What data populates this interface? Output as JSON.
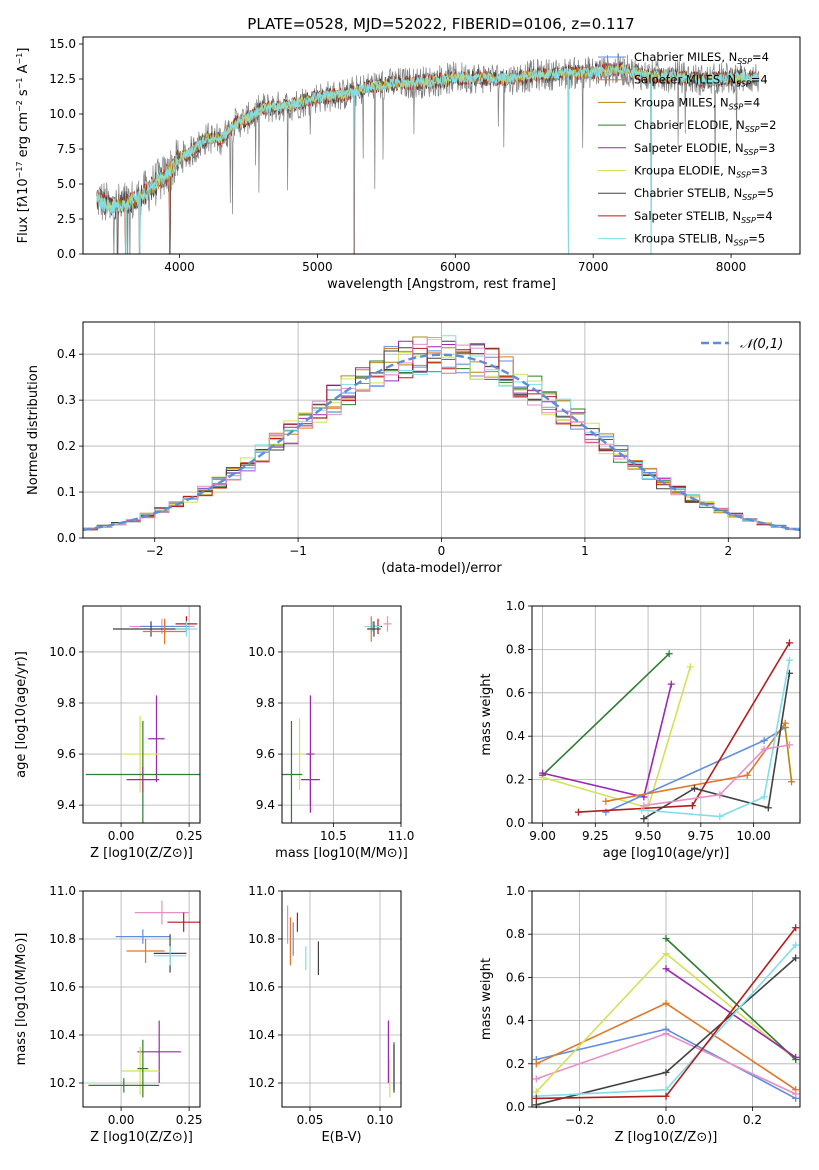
{
  "figure": {
    "title": "PLATE=0528, MJD=52022, FIBERID=0106, z=0.117"
  },
  "colors": {
    "chabrier_miles": "#5f8ee0",
    "salpeter_miles": "#e0772a",
    "kroupa_miles": "#b8860b",
    "chabrier_elodie": "#2e7d32",
    "salpeter_elodie": "#9c27b0",
    "kroupa_elodie": "#d4e157",
    "chabrier_stelib": "#424242",
    "salpeter_stelib": "#b71c1c",
    "kroupa_stelib": "#80deea",
    "pink": "#e88fc7",
    "gaussian": "#5b8ed6",
    "data_spectrum": "#808080"
  },
  "chart_data": [
    {
      "id": "spectrum",
      "type": "line",
      "xlabel": "wavelength [Angstrom, rest frame]",
      "ylabel_html": "Flux [f<tspan font-style='italic'>λ</tspan>10<tspan dy='-5' font-size='8'>−17</tspan><tspan dy='5'> erg cm</tspan><tspan dy='-5' font-size='8'>−2</tspan><tspan dy='5'> s</tspan><tspan dy='-5' font-size='8'>−1</tspan><tspan dy='5'> A</tspan><tspan dy='-5' font-size='8'>−1</tspan><tspan dy='5'>]</tspan>",
      "xlim": [
        3300,
        8500
      ],
      "ylim": [
        0,
        15.5
      ],
      "xticks": [
        4000,
        5000,
        6000,
        7000,
        8000
      ],
      "yticks": [
        "0.0",
        "2.5",
        "5.0",
        "7.5",
        "10.0",
        "12.5",
        "15.0"
      ],
      "ytick_values": [
        0,
        2.5,
        5,
        7.5,
        10,
        12.5,
        15
      ],
      "continuum": {
        "x": [
          3400,
          3500,
          3600,
          3700,
          3800,
          3900,
          4000,
          4100,
          4200,
          4300,
          4400,
          4500,
          4600,
          4800,
          5000,
          5200,
          5400,
          5600,
          5800,
          6000,
          6200,
          6400,
          6600,
          6800,
          7000,
          7200,
          7400,
          7600,
          7800,
          8000,
          8200
        ],
        "y": [
          4.0,
          3.3,
          3.6,
          3.9,
          4.8,
          5.6,
          6.8,
          7.4,
          8.3,
          8.2,
          9.3,
          9.7,
          10.4,
          10.6,
          11.2,
          11.4,
          12.0,
          12.2,
          12.3,
          12.6,
          12.6,
          12.5,
          12.8,
          12.9,
          13.0,
          13.2,
          12.7,
          12.7,
          12.4,
          12.6,
          12.6
        ]
      },
      "deep_features_x": [
        3550,
        3610,
        3710,
        3930,
        5265,
        6820,
        7420
      ],
      "legend": [
        {
          "label": "Chabrier MILES, N",
          "sub": "SSP",
          "tail": "=4",
          "color": "chabrier_miles"
        },
        {
          "label": "Salpeter MILES, N",
          "sub": "SSP",
          "tail": "=4",
          "color": "salpeter_miles"
        },
        {
          "label": "Kroupa MILES, N",
          "sub": "SSP",
          "tail": "=4",
          "color": "kroupa_miles"
        },
        {
          "label": "Chabrier ELODIE, N",
          "sub": "SSP",
          "tail": "=2",
          "color": "chabrier_elodie"
        },
        {
          "label": "Salpeter ELODIE, N",
          "sub": "SSP",
          "tail": "=3",
          "color": "salpeter_elodie"
        },
        {
          "label": "Kroupa ELODIE, N",
          "sub": "SSP",
          "tail": "=3",
          "color": "kroupa_elodie"
        },
        {
          "label": "Chabrier STELIB, N",
          "sub": "SSP",
          "tail": "=5",
          "color": "chabrier_stelib"
        },
        {
          "label": "Salpeter STELIB, N",
          "sub": "SSP",
          "tail": "=4",
          "color": "salpeter_stelib"
        },
        {
          "label": "Kroupa STELIB, N",
          "sub": "SSP",
          "tail": "=5",
          "color": "kroupa_stelib"
        }
      ]
    },
    {
      "id": "residuals",
      "type": "histogram",
      "xlabel": "(data-model)/error",
      "ylabel": "Normed distribution",
      "xlim": [
        -2.5,
        2.5
      ],
      "ylim": [
        0,
        0.47
      ],
      "xticks": [
        -2,
        -1,
        0,
        1,
        2
      ],
      "xtick_labels": [
        "−2",
        "−1",
        "0",
        "1",
        "2"
      ],
      "yticks": [
        0.0,
        0.1,
        0.2,
        0.3,
        0.4
      ],
      "ytick_labels": [
        "0.0",
        "0.1",
        "0.2",
        "0.3",
        "0.4"
      ],
      "bin_width": 0.1,
      "legend": "𝒩(0,1)",
      "gaussian": {
        "mu": 0,
        "sigma": 1
      }
    },
    {
      "id": "age_vs_Z",
      "type": "errorbar",
      "xlabel": "Z [log10(Z/Z⊙)]",
      "ylabel": "age  [log10(age/yr)]",
      "xlim": [
        -0.14,
        0.29
      ],
      "ylim": [
        9.33,
        10.18
      ],
      "xticks": [
        0.0,
        0.25
      ],
      "xtick_labels": [
        "0.00",
        "0.25"
      ],
      "yticks": [
        9.4,
        9.6,
        9.8,
        10.0
      ],
      "ytick_labels": [
        "9.4",
        "9.6",
        "9.8",
        "10.0"
      ],
      "points": [
        {
          "x": 0.15,
          "y": 10.1,
          "xerr": 0.12,
          "yerr": 0.03,
          "color": "pink"
        },
        {
          "x": 0.16,
          "y": 10.1,
          "xerr": 0.09,
          "yerr": 0.03,
          "color": "chabrier_miles"
        },
        {
          "x": 0.24,
          "y": 10.11,
          "xerr": 0.04,
          "yerr": 0.03,
          "color": "salpeter_stelib"
        },
        {
          "x": 0.11,
          "y": 10.09,
          "xerr": 0.14,
          "yerr": 0.03,
          "color": "chabrier_stelib"
        },
        {
          "x": 0.16,
          "y": 10.08,
          "xerr": 0.08,
          "yerr": 0.05,
          "color": "salpeter_miles"
        },
        {
          "x": 0.24,
          "y": 10.09,
          "xerr": 0.04,
          "yerr": 0.03,
          "color": "kroupa_stelib"
        },
        {
          "x": 0.13,
          "y": 9.66,
          "xerr": 0.03,
          "yerr": 0.17,
          "color": "salpeter_elodie"
        },
        {
          "x": 0.07,
          "y": 9.6,
          "xerr": 0.07,
          "yerr": 0.15,
          "color": "kroupa_elodie"
        },
        {
          "x": 0.08,
          "y": 9.52,
          "xerr": 0.21,
          "yerr": 0.21,
          "color": "chabrier_elodie"
        },
        {
          "x": 0.08,
          "y": 9.5,
          "xerr": 0.06,
          "yerr": 0.05,
          "color": "salpeter_elodie"
        }
      ]
    },
    {
      "id": "age_vs_mass",
      "type": "errorbar",
      "xlabel": "mass [log10(M/M⊙)]",
      "ylabel": "",
      "xlim": [
        10.12,
        11.0
      ],
      "ylim": [
        9.33,
        10.18
      ],
      "xticks": [
        10.5,
        11.0
      ],
      "xtick_labels": [
        "10.5",
        "11.0"
      ],
      "yticks": [
        9.4,
        9.6,
        9.8,
        10.0
      ],
      "ytick_labels": [
        "9.4",
        "9.6",
        "9.8",
        "10.0"
      ],
      "points": [
        {
          "x": 10.9,
          "y": 10.11,
          "xerr": 0.03,
          "yerr": 0.03,
          "color": "pink"
        },
        {
          "x": 10.83,
          "y": 10.1,
          "xerr": 0.03,
          "yerr": 0.03,
          "color": "salpeter_stelib"
        },
        {
          "x": 10.79,
          "y": 10.1,
          "xerr": 0.06,
          "yerr": 0.02,
          "color": "kroupa_stelib"
        },
        {
          "x": 10.78,
          "y": 10.09,
          "xerr": 0.03,
          "yerr": 0.05,
          "color": "salpeter_miles"
        },
        {
          "x": 10.8,
          "y": 10.09,
          "xerr": 0.05,
          "yerr": 0.03,
          "color": "chabrier_stelib"
        },
        {
          "x": 10.33,
          "y": 9.6,
          "xerr": 0.03,
          "yerr": 0.23,
          "color": "salpeter_elodie"
        },
        {
          "x": 10.25,
          "y": 9.6,
          "xerr": 0.03,
          "yerr": 0.14,
          "color": "kroupa_elodie"
        },
        {
          "x": 10.19,
          "y": 9.52,
          "xerr": 0.08,
          "yerr": 0.21,
          "color": "chabrier_elodie"
        },
        {
          "x": 10.33,
          "y": 9.5,
          "xerr": 0.07,
          "yerr": 0.1,
          "color": "salpeter_elodie"
        }
      ]
    },
    {
      "id": "weight_vs_age",
      "type": "line",
      "xlabel": "age  [log10(age/yr)]",
      "ylabel": "mass weight",
      "xlim": [
        8.95,
        10.22
      ],
      "ylim": [
        0.0,
        1.0
      ],
      "xticks": [
        9.0,
        9.25,
        9.5,
        9.75,
        10.0
      ],
      "xtick_labels": [
        "9.00",
        "9.25",
        "9.50",
        "9.75",
        "10.00"
      ],
      "yticks": [
        0.0,
        0.2,
        0.4,
        0.6,
        0.8,
        1.0
      ],
      "ytick_labels": [
        "0.0",
        "0.2",
        "0.4",
        "0.6",
        "0.8",
        "1.0"
      ],
      "series": [
        {
          "color": "chabrier_elodie",
          "x": [
            9.0,
            9.6
          ],
          "y": [
            0.22,
            0.78
          ]
        },
        {
          "color": "kroupa_elodie",
          "x": [
            9.0,
            9.5,
            9.7
          ],
          "y": [
            0.21,
            0.07,
            0.72
          ]
        },
        {
          "color": "salpeter_elodie",
          "x": [
            9.0,
            9.48,
            9.61
          ],
          "y": [
            0.23,
            0.12,
            0.64
          ]
        },
        {
          "color": "chabrier_miles",
          "x": [
            9.3,
            10.05,
            10.15
          ],
          "y": [
            0.05,
            0.38,
            0.44
          ]
        },
        {
          "color": "salpeter_miles",
          "x": [
            9.3,
            9.97,
            10.15
          ],
          "y": [
            0.1,
            0.22,
            0.46
          ]
        },
        {
          "color": "kroupa_miles",
          "x": [
            10.15,
            10.18
          ],
          "y": [
            0.44,
            0.19
          ]
        },
        {
          "color": "salpeter_stelib",
          "x": [
            9.17,
            9.71,
            10.17
          ],
          "y": [
            0.05,
            0.08,
            0.83
          ]
        },
        {
          "color": "chabrier_stelib",
          "x": [
            9.48,
            9.72,
            10.07,
            10.17
          ],
          "y": [
            0.02,
            0.16,
            0.07,
            0.69
          ]
        },
        {
          "color": "kroupa_stelib",
          "x": [
            9.47,
            9.84,
            10.05,
            10.17
          ],
          "y": [
            0.06,
            0.03,
            0.12,
            0.75
          ]
        },
        {
          "color": "pink",
          "x": [
            9.48,
            9.84,
            10.05,
            10.17
          ],
          "y": [
            0.08,
            0.13,
            0.34,
            0.36
          ]
        }
      ]
    },
    {
      "id": "mass_vs_Z",
      "type": "errorbar",
      "xlabel": "Z [log10(Z/Z⊙)]",
      "ylabel": "mass [log10(M/M⊙)]",
      "xlim": [
        -0.14,
        0.29
      ],
      "ylim": [
        10.1,
        11.0
      ],
      "xticks": [
        0.0,
        0.25
      ],
      "xtick_labels": [
        "0.00",
        "0.25"
      ],
      "yticks": [
        10.2,
        10.4,
        10.6,
        10.8,
        11.0
      ],
      "ytick_labels": [
        "10.2",
        "10.4",
        "10.6",
        "10.8",
        "11.0"
      ],
      "points": [
        {
          "x": 0.15,
          "y": 10.91,
          "xerr": 0.1,
          "yerr": 0.05,
          "color": "pink"
        },
        {
          "x": 0.23,
          "y": 10.87,
          "xerr": 0.06,
          "yerr": 0.04,
          "color": "salpeter_stelib"
        },
        {
          "x": 0.08,
          "y": 10.81,
          "xerr": 0.1,
          "yerr": 0.03,
          "color": "chabrier_miles"
        },
        {
          "x": 0.09,
          "y": 10.75,
          "xerr": 0.07,
          "yerr": 0.05,
          "color": "salpeter_miles"
        },
        {
          "x": 0.18,
          "y": 10.74,
          "xerr": 0.06,
          "yerr": 0.08,
          "color": "chabrier_stelib"
        },
        {
          "x": 0.18,
          "y": 10.73,
          "xerr": 0.06,
          "yerr": 0.04,
          "color": "kroupa_stelib"
        },
        {
          "x": 0.14,
          "y": 10.33,
          "xerr": 0.08,
          "yerr": 0.13,
          "color": "salpeter_elodie"
        },
        {
          "x": 0.07,
          "y": 10.25,
          "xerr": 0.07,
          "yerr": 0.1,
          "color": "kroupa_elodie"
        },
        {
          "x": 0.01,
          "y": 10.19,
          "xerr": 0.13,
          "yerr": 0.03,
          "color": "chabrier_elodie"
        },
        {
          "x": 0.08,
          "y": 10.26,
          "xerr": 0.02,
          "yerr": 0.12,
          "color": "chabrier_elodie"
        }
      ]
    },
    {
      "id": "mass_vs_ebv",
      "type": "errorbar",
      "xlabel": "E(B-V)",
      "ylabel": "",
      "xlim": [
        0.03,
        0.115
      ],
      "ylim": [
        10.1,
        11.0
      ],
      "xticks": [
        0.05,
        0.1
      ],
      "xtick_labels": [
        "0.05",
        "0.10"
      ],
      "yticks": [
        10.2,
        10.4,
        10.6,
        10.8,
        11.0
      ],
      "ytick_labels": [
        "10.2",
        "10.4",
        "10.6",
        "10.8",
        "11.0"
      ],
      "points": [
        {
          "x": 0.034,
          "y": 10.86,
          "xerr": 0,
          "yerr": 0.08,
          "color": "pink"
        },
        {
          "x": 0.036,
          "y": 10.79,
          "xerr": 0,
          "yerr": 0.1,
          "color": "salpeter_miles"
        },
        {
          "x": 0.038,
          "y": 10.8,
          "xerr": 0,
          "yerr": 0.07,
          "color": "chabrier_miles"
        },
        {
          "x": 0.041,
          "y": 10.87,
          "xerr": 0,
          "yerr": 0.04,
          "color": "salpeter_stelib"
        },
        {
          "x": 0.047,
          "y": 10.72,
          "xerr": 0,
          "yerr": 0.05,
          "color": "kroupa_stelib"
        },
        {
          "x": 0.056,
          "y": 10.72,
          "xerr": 0,
          "yerr": 0.07,
          "color": "chabrier_stelib"
        },
        {
          "x": 0.106,
          "y": 10.33,
          "xerr": 0,
          "yerr": 0.13,
          "color": "salpeter_elodie"
        },
        {
          "x": 0.107,
          "y": 10.22,
          "xerr": 0,
          "yerr": 0.08,
          "color": "kroupa_elodie"
        },
        {
          "x": 0.11,
          "y": 10.27,
          "xerr": 0,
          "yerr": 0.1,
          "color": "chabrier_elodie"
        },
        {
          "x": 0.11,
          "y": 10.26,
          "xerr": 0,
          "yerr": 0.1,
          "color": "chabrier_stelib"
        }
      ]
    },
    {
      "id": "weight_vs_Z",
      "type": "line",
      "xlabel": "Z [log10(Z/Z⊙)]",
      "ylabel": "mass weight",
      "xlim": [
        -0.31,
        0.31
      ],
      "ylim": [
        0.0,
        1.0
      ],
      "xticks": [
        -0.2,
        0.0,
        0.2
      ],
      "xtick_labels": [
        "−0.2",
        "0.0",
        "0.2"
      ],
      "yticks": [
        0.0,
        0.2,
        0.4,
        0.6,
        0.8,
        1.0
      ],
      "ytick_labels": [
        "0.0",
        "0.2",
        "0.4",
        "0.6",
        "0.8",
        "1.0"
      ],
      "series": [
        {
          "color": "chabrier_miles",
          "x": [
            -0.3,
            0.0,
            0.3
          ],
          "y": [
            0.22,
            0.36,
            0.04
          ]
        },
        {
          "color": "salpeter_miles",
          "x": [
            -0.3,
            0.0,
            0.3
          ],
          "y": [
            0.2,
            0.48,
            0.08
          ]
        },
        {
          "color": "pink",
          "x": [
            -0.3,
            0.0,
            0.3
          ],
          "y": [
            0.13,
            0.34,
            0.06
          ]
        },
        {
          "color": "kroupa_elodie",
          "x": [
            -0.3,
            0.0,
            0.3
          ],
          "y": [
            0.07,
            0.71,
            0.22
          ]
        },
        {
          "color": "chabrier_elodie",
          "x": [
            0.0,
            0.3
          ],
          "y": [
            0.78,
            0.22
          ]
        },
        {
          "color": "salpeter_elodie",
          "x": [
            0.0,
            0.3
          ],
          "y": [
            0.64,
            0.23
          ]
        },
        {
          "color": "chabrier_stelib",
          "x": [
            -0.3,
            0.0,
            0.3
          ],
          "y": [
            0.01,
            0.16,
            0.69
          ]
        },
        {
          "color": "kroupa_stelib",
          "x": [
            -0.3,
            0.0,
            0.3
          ],
          "y": [
            0.05,
            0.08,
            0.75
          ]
        },
        {
          "color": "salpeter_stelib",
          "x": [
            -0.3,
            0.0,
            0.3
          ],
          "y": [
            0.04,
            0.05,
            0.83
          ]
        }
      ]
    }
  ]
}
